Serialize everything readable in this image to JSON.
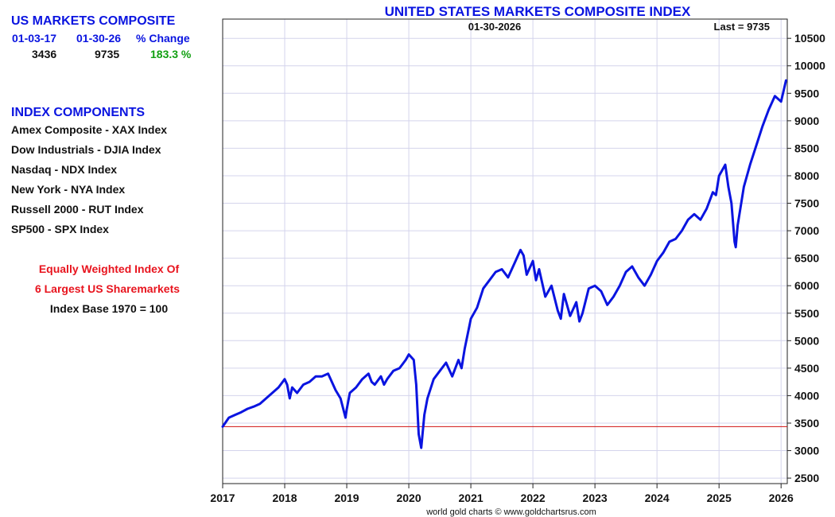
{
  "left_panel": {
    "heading": "US MARKETS COMPOSITE",
    "col1_header": "01-03-17",
    "col2_header": "01-30-26",
    "col3_header": "% Change",
    "col1_value": "3436",
    "col2_value": "9735",
    "col3_value": "183.3 %",
    "components_heading": "INDEX COMPONENTS",
    "components": [
      "Amex Composite - XAX Index",
      "Dow Industrials - DJIA Index",
      "Nasdaq - NDX Index",
      "New York - NYA Index",
      "Russell 2000 - RUT Index",
      "SP500 - SPX Index"
    ],
    "note_line1": "Equally Weighted Index Of",
    "note_line2": "6 Largest US Sharemarkets",
    "note_line3": "Index Base 1970 = 100"
  },
  "colors": {
    "title": "#0a14e0",
    "line": "#0a14e0",
    "grid": "#d4d4ec",
    "reference": "#d01010",
    "positive": "#12a012"
  },
  "chart_data": {
    "type": "line",
    "title": "UNITED STATES MARKETS COMPOSITE INDEX",
    "date_label": "01-30-2026",
    "last_label": "Last = 9735",
    "credit": "world gold charts © www.goldchartsrus.com",
    "xlabel": "",
    "ylabel": "",
    "xlim": [
      2017.0,
      2026.1
    ],
    "ylim": [
      2400,
      10850
    ],
    "x_ticks": [
      2017,
      2018,
      2019,
      2020,
      2021,
      2022,
      2023,
      2024,
      2025,
      2026
    ],
    "y_ticks": [
      2500,
      3000,
      3500,
      4000,
      4500,
      5000,
      5500,
      6000,
      6500,
      7000,
      7500,
      8000,
      8500,
      9000,
      9500,
      10000,
      10500
    ],
    "grid": true,
    "reference_line": 3436,
    "series": [
      {
        "name": "US Markets Composite",
        "x": [
          2017.0,
          2017.1,
          2017.2,
          2017.3,
          2017.4,
          2017.5,
          2017.6,
          2017.7,
          2017.8,
          2017.9,
          2018.0,
          2018.04,
          2018.08,
          2018.12,
          2018.2,
          2018.3,
          2018.4,
          2018.5,
          2018.6,
          2018.7,
          2018.76,
          2018.82,
          2018.9,
          2018.98,
          2019.0,
          2019.05,
          2019.15,
          2019.25,
          2019.35,
          2019.4,
          2019.45,
          2019.55,
          2019.6,
          2019.65,
          2019.75,
          2019.85,
          2019.95,
          2020.0,
          2020.08,
          2020.12,
          2020.16,
          2020.2,
          2020.25,
          2020.3,
          2020.4,
          2020.5,
          2020.6,
          2020.7,
          2020.8,
          2020.85,
          2020.9,
          2021.0,
          2021.1,
          2021.2,
          2021.3,
          2021.4,
          2021.5,
          2021.6,
          2021.7,
          2021.8,
          2021.85,
          2021.9,
          2022.0,
          2022.05,
          2022.1,
          2022.2,
          2022.3,
          2022.4,
          2022.45,
          2022.5,
          2022.6,
          2022.7,
          2022.75,
          2022.8,
          2022.9,
          2023.0,
          2023.1,
          2023.2,
          2023.3,
          2023.4,
          2023.5,
          2023.6,
          2023.7,
          2023.8,
          2023.9,
          2024.0,
          2024.1,
          2024.2,
          2024.3,
          2024.4,
          2024.5,
          2024.6,
          2024.7,
          2024.8,
          2024.9,
          2024.95,
          2025.0,
          2025.05,
          2025.1,
          2025.15,
          2025.2,
          2025.25,
          2025.27,
          2025.3,
          2025.4,
          2025.5,
          2025.6,
          2025.7,
          2025.8,
          2025.9,
          2026.0,
          2026.08
        ],
        "y": [
          3436,
          3600,
          3650,
          3700,
          3760,
          3800,
          3850,
          3950,
          4050,
          4150,
          4300,
          4200,
          3950,
          4150,
          4050,
          4200,
          4250,
          4350,
          4350,
          4400,
          4250,
          4100,
          3950,
          3600,
          3750,
          4050,
          4150,
          4300,
          4400,
          4250,
          4200,
          4350,
          4200,
          4300,
          4450,
          4500,
          4650,
          4750,
          4650,
          4200,
          3300,
          3050,
          3650,
          3950,
          4300,
          4450,
          4600,
          4350,
          4650,
          4500,
          4850,
          5400,
          5600,
          5950,
          6100,
          6250,
          6300,
          6150,
          6400,
          6650,
          6550,
          6200,
          6450,
          6100,
          6300,
          5800,
          6000,
          5550,
          5400,
          5850,
          5450,
          5700,
          5350,
          5500,
          5950,
          6000,
          5900,
          5650,
          5800,
          6000,
          6250,
          6350,
          6150,
          6000,
          6200,
          6450,
          6600,
          6800,
          6850,
          7000,
          7200,
          7300,
          7200,
          7400,
          7700,
          7650,
          8000,
          8100,
          8200,
          7800,
          7500,
          6800,
          6700,
          7100,
          7800,
          8200,
          8550,
          8900,
          9200,
          9450,
          9350,
          9735
        ]
      }
    ]
  }
}
